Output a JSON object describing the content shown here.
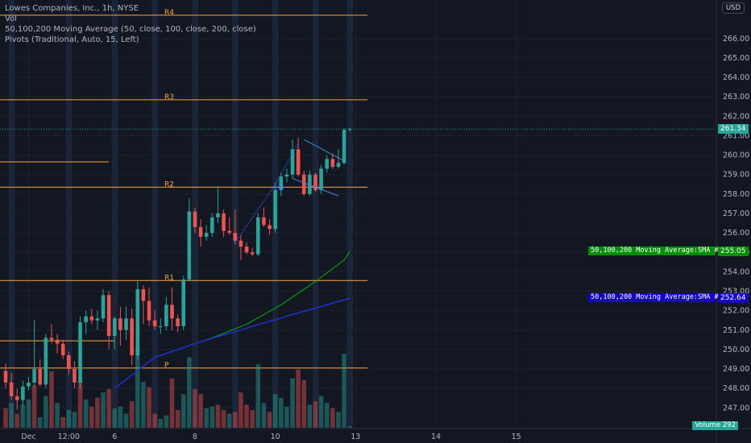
{
  "legend": {
    "title": "Lowes Companies, Inc., 1h, NYSE",
    "volume": "Vol",
    "moving_average": "50,100,200 Moving Average (50, close, 100, close, 200, close)",
    "pivots": "Pivots (Traditional, Auto, 15, Left)"
  },
  "currency_badge": "USD",
  "volume_badge": "Volume",
  "volume_badge_value": "292",
  "colors": {
    "background": "#131722",
    "up": "#26a69a",
    "down": "#ef5350",
    "pivot": "#f7a539",
    "sma1": "#00b300",
    "sma2": "#1f2fc9",
    "last_price": "#26a69a"
  },
  "chart_data": {
    "type": "candlestick",
    "y_axis": {
      "ticks": [
        "266.00",
        "265.00",
        "264.00",
        "263.00",
        "262.00",
        "261.00",
        "260.00",
        "259.00",
        "258.00",
        "257.00",
        "256.00",
        "255.00",
        "254.00",
        "253.00",
        "252.00",
        "251.00",
        "250.00",
        "249.00",
        "248.00",
        "247.00"
      ],
      "min": 246.6,
      "max": 267.4
    },
    "x_axis": {
      "ticks": [
        {
          "label": "Dec",
          "bar": 4
        },
        {
          "label": "12:00",
          "bar": 11
        },
        {
          "label": "6",
          "bar": 19
        },
        {
          "label": "8",
          "bar": 33
        },
        {
          "label": "10",
          "bar": 47
        },
        {
          "label": "13",
          "bar": 61
        },
        {
          "label": "14",
          "bar": 75
        },
        {
          "label": "15",
          "bar": 89
        }
      ]
    },
    "pivots": [
      {
        "label": "R4",
        "value": 267.2
      },
      {
        "label": "R3",
        "value": 262.85
      },
      {
        "label": "R2",
        "value": 258.35
      },
      {
        "label": "R1",
        "value": 253.55
      },
      {
        "label": "P",
        "value": 249.05
      }
    ],
    "last_price": {
      "label": "261.34",
      "value": 261.34
    },
    "sma_labels": [
      {
        "name": "50,100,200 Moving Average:SMA #1",
        "value": "255.05",
        "numeric": 255.05
      },
      {
        "name": "50,100,200 Moving Average:SMA #2",
        "value": "252.64",
        "numeric": 252.64
      }
    ],
    "candles": [
      [
        248.9,
        249.3,
        248.0,
        248.3
      ],
      [
        248.3,
        248.8,
        247.4,
        247.6
      ],
      [
        247.6,
        248.0,
        246.9,
        247.4
      ],
      [
        247.4,
        248.4,
        247.1,
        248.1
      ],
      [
        248.1,
        248.6,
        247.9,
        248.3
      ],
      [
        248.3,
        251.5,
        248.1,
        249.0
      ],
      [
        249.0,
        249.5,
        248.1,
        248.2
      ],
      [
        248.2,
        250.8,
        248.0,
        250.6
      ],
      [
        250.6,
        251.3,
        250.3,
        250.5
      ],
      [
        250.5,
        250.8,
        249.8,
        250.3
      ],
      [
        250.3,
        250.5,
        249.5,
        249.7
      ],
      [
        249.7,
        249.9,
        248.7,
        249.0
      ],
      [
        249.0,
        249.4,
        248.0,
        248.3
      ],
      [
        248.3,
        251.7,
        248.0,
        251.4
      ],
      [
        251.4,
        252.0,
        250.8,
        251.7
      ],
      [
        251.7,
        252.1,
        251.3,
        251.5
      ],
      [
        251.5,
        252.0,
        251.0,
        251.6
      ],
      [
        251.6,
        253.1,
        251.4,
        252.8
      ],
      [
        252.8,
        253.0,
        250.0,
        250.7
      ],
      [
        250.7,
        251.7,
        250.0,
        251.6
      ],
      [
        251.6,
        252.2,
        250.2,
        251.0
      ],
      [
        251.0,
        252.2,
        250.5,
        251.6
      ],
      [
        251.6,
        252.1,
        249.2,
        249.7
      ],
      [
        249.7,
        253.5,
        249.5,
        253.1
      ],
      [
        253.1,
        253.3,
        251.3,
        252.5
      ],
      [
        252.5,
        253.2,
        251.2,
        251.5
      ],
      [
        251.5,
        252.0,
        251.0,
        251.2
      ],
      [
        251.2,
        251.6,
        250.8,
        251.2
      ],
      [
        251.2,
        252.7,
        251.0,
        252.3
      ],
      [
        252.3,
        253.2,
        251.0,
        251.6
      ],
      [
        251.6,
        251.8,
        250.9,
        251.2
      ],
      [
        251.2,
        253.8,
        251.0,
        253.6
      ],
      [
        253.6,
        257.8,
        253.5,
        257.1
      ],
      [
        257.1,
        257.3,
        256.0,
        256.3
      ],
      [
        256.3,
        256.7,
        255.3,
        255.8
      ],
      [
        255.8,
        256.4,
        255.6,
        256.0
      ],
      [
        256.0,
        257.0,
        255.8,
        256.8
      ],
      [
        256.8,
        258.4,
        256.5,
        257.0
      ],
      [
        257.0,
        257.2,
        255.8,
        256.1
      ],
      [
        256.1,
        256.8,
        255.9,
        256.0
      ],
      [
        256.0,
        257.2,
        255.4,
        255.6
      ],
      [
        255.6,
        255.9,
        254.6,
        255.3
      ],
      [
        255.3,
        255.5,
        254.9,
        255.0
      ],
      [
        255.0,
        255.2,
        254.8,
        254.9
      ],
      [
        254.9,
        257.0,
        254.8,
        256.8
      ],
      [
        256.8,
        257.3,
        256.3,
        256.4
      ],
      [
        256.4,
        256.7,
        255.9,
        256.2
      ],
      [
        256.2,
        258.6,
        256.0,
        258.2
      ],
      [
        258.2,
        259.1,
        257.9,
        258.9
      ],
      [
        258.9,
        259.3,
        258.6,
        259.0
      ],
      [
        259.0,
        260.8,
        258.8,
        260.3
      ],
      [
        260.3,
        260.9,
        258.9,
        259.0
      ],
      [
        259.0,
        259.2,
        257.9,
        258.0
      ],
      [
        258.0,
        259.2,
        257.9,
        259.0
      ],
      [
        259.0,
        259.1,
        258.1,
        258.2
      ],
      [
        258.2,
        259.5,
        258.0,
        259.3
      ],
      [
        259.3,
        260.0,
        259.1,
        259.8
      ],
      [
        259.8,
        260.1,
        259.3,
        259.4
      ],
      [
        259.4,
        260.3,
        259.3,
        259.6
      ],
      [
        259.6,
        261.4,
        259.5,
        261.3
      ],
      [
        261.3,
        261.4,
        261.2,
        261.34
      ]
    ],
    "volume": [
      {
        "v": 55,
        "up": false
      },
      {
        "v": 70,
        "up": true
      },
      {
        "v": 40,
        "up": false
      },
      {
        "v": 65,
        "up": true
      },
      {
        "v": 80,
        "up": true
      },
      {
        "v": 120,
        "up": false
      },
      {
        "v": 30,
        "up": true
      },
      {
        "v": 90,
        "up": true
      },
      {
        "v": 160,
        "up": false
      },
      {
        "v": 70,
        "up": true
      },
      {
        "v": 30,
        "up": false
      },
      {
        "v": 50,
        "up": true
      },
      {
        "v": 45,
        "up": true
      },
      {
        "v": 135,
        "up": false
      },
      {
        "v": 80,
        "up": true
      },
      {
        "v": 60,
        "up": false
      },
      {
        "v": 85,
        "up": false
      },
      {
        "v": 100,
        "up": true
      },
      {
        "v": 110,
        "up": false
      },
      {
        "v": 55,
        "up": true
      },
      {
        "v": 60,
        "up": true
      },
      {
        "v": 40,
        "up": true
      },
      {
        "v": 75,
        "up": false
      },
      {
        "v": 220,
        "up": true
      },
      {
        "v": 130,
        "up": true
      },
      {
        "v": 115,
        "up": false
      },
      {
        "v": 40,
        "up": false
      },
      {
        "v": 25,
        "up": true
      },
      {
        "v": 35,
        "up": true
      },
      {
        "v": 140,
        "up": false
      },
      {
        "v": 50,
        "up": false
      },
      {
        "v": 95,
        "up": true
      },
      {
        "v": 200,
        "up": true
      },
      {
        "v": 110,
        "up": false
      },
      {
        "v": 95,
        "up": false
      },
      {
        "v": 55,
        "up": true
      },
      {
        "v": 60,
        "up": true
      },
      {
        "v": 65,
        "up": false
      },
      {
        "v": 50,
        "up": false
      },
      {
        "v": 40,
        "up": true
      },
      {
        "v": 45,
        "up": false
      },
      {
        "v": 100,
        "up": false
      },
      {
        "v": 65,
        "up": false
      },
      {
        "v": 50,
        "up": false
      },
      {
        "v": 180,
        "up": true
      },
      {
        "v": 70,
        "up": true
      },
      {
        "v": 45,
        "up": false
      },
      {
        "v": 95,
        "up": true
      },
      {
        "v": 85,
        "up": true
      },
      {
        "v": 60,
        "up": true
      },
      {
        "v": 140,
        "up": true
      },
      {
        "v": 165,
        "up": false
      },
      {
        "v": 135,
        "up": false
      },
      {
        "v": 65,
        "up": true
      },
      {
        "v": 75,
        "up": false
      },
      {
        "v": 90,
        "up": true
      },
      {
        "v": 70,
        "up": true
      },
      {
        "v": 55,
        "up": false
      },
      {
        "v": 45,
        "up": true
      },
      {
        "v": 210,
        "up": true
      },
      {
        "v": 4,
        "up": true
      }
    ],
    "sma1": [
      {
        "bar": 30,
        "value": 250.0
      },
      {
        "bar": 36,
        "value": 250.6
      },
      {
        "bar": 42,
        "value": 251.3
      },
      {
        "bar": 48,
        "value": 252.3
      },
      {
        "bar": 54,
        "value": 253.5
      },
      {
        "bar": 59,
        "value": 254.6
      },
      {
        "bar": 60,
        "value": 255.05
      }
    ],
    "sma2": [
      {
        "bar": 19,
        "value": 248.0
      },
      {
        "bar": 26,
        "value": 249.6
      },
      {
        "bar": 34,
        "value": 250.4
      },
      {
        "bar": 42,
        "value": 251.1
      },
      {
        "bar": 50,
        "value": 251.8
      },
      {
        "bar": 56,
        "value": 252.3
      },
      {
        "bar": 60,
        "value": 252.64
      }
    ],
    "extra_lines": [
      {
        "value": 259.65,
        "from_bar": -1,
        "to_bar": 18
      },
      {
        "value": 250.45,
        "from_bar": -1,
        "to_bar": 19
      }
    ],
    "trendlines": [
      {
        "from": {
          "bar": 52,
          "value": 260.8
        },
        "to": {
          "bar": 59,
          "value": 259.7
        }
      },
      {
        "from": {
          "bar": 50,
          "value": 258.8
        },
        "to": {
          "bar": 58,
          "value": 257.9
        }
      }
    ],
    "dotted_line": [
      {
        "bar": 40,
        "value": 255.5
      },
      {
        "bar": 47,
        "value": 258.5
      },
      {
        "bar": 51,
        "value": 260.6
      }
    ],
    "highlight_columns": [
      1,
      11,
      19,
      26,
      33,
      40,
      47,
      54,
      60
    ]
  }
}
